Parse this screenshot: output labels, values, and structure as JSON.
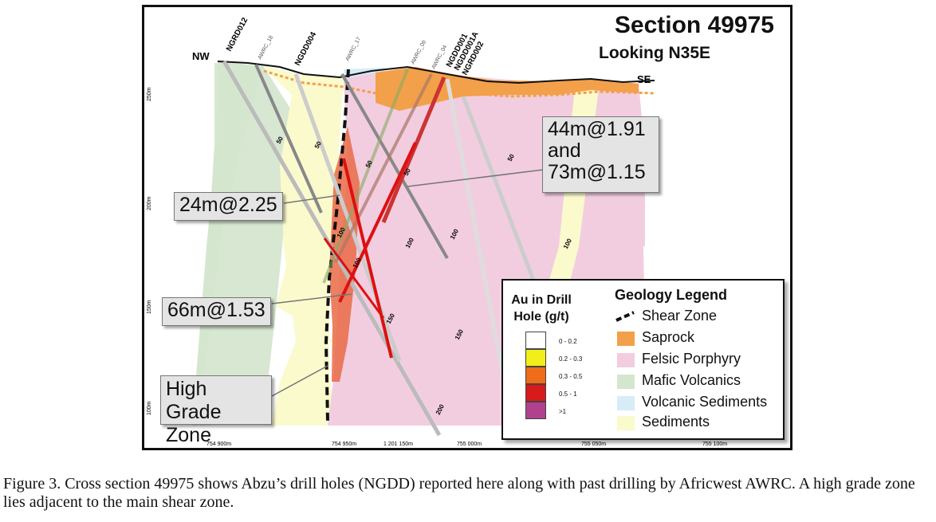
{
  "section": {
    "title": "Section 49975",
    "subtitle": "Looking N35E",
    "dir_left": "NW",
    "dir_right": "SE"
  },
  "holes": {
    "ngrd012": "NGRD012",
    "awrc18": "AWRC_18",
    "ngdd004": "NGDD004",
    "awrc17": "AWRC_17",
    "awrc09": "AWRC_09",
    "awrc04": "AWRC_04",
    "ngdd001": "NGDD001",
    "ngdd001a": "NGDD001A",
    "ngrd002": "NGRD002"
  },
  "depths": {
    "d50": "50",
    "d100": "100",
    "d150": "150",
    "d200": "200"
  },
  "rl_labels": [
    "250m",
    "200m",
    "150m",
    "100m"
  ],
  "easting_labels": [
    "754 900m",
    "754 950m",
    "1 201 150m",
    "755 000m",
    "755 050m",
    "755 100m"
  ],
  "callouts": {
    "c1": "44m@1.91\nand\n73m@1.15",
    "c2": "24m@2.25",
    "c3": "66m@1.53",
    "c4": "High Grade\nZone"
  },
  "legend": {
    "au_title": "Au in Drill\nHole (g/t)",
    "geo_title": "Geology Legend",
    "grades": [
      {
        "label": "0 - 0.2",
        "color": "#ffffff"
      },
      {
        "label": "0.2 - 0.3",
        "color": "#f2ee1c"
      },
      {
        "label": "0.3 - 0.5",
        "color": "#ef6c1a"
      },
      {
        "label": "0.5 - 1",
        "color": "#d81a1a"
      },
      {
        "label": ">1",
        "color": "#b0418f"
      }
    ],
    "geology": [
      {
        "label": "Shear Zone",
        "color": "#111111"
      },
      {
        "label": "Saprock",
        "color": "#f3a04a"
      },
      {
        "label": "Felsic Porphyry",
        "color": "#f2cde0"
      },
      {
        "label": "Mafic Volcanics",
        "color": "#d5e6cf"
      },
      {
        "label": "Volcanic Sediments",
        "color": "#d6ecf6"
      },
      {
        "label": "Sediments",
        "color": "#fafacd"
      }
    ]
  },
  "caption": "Figure 3.  Cross section 49975 shows Abzu’s drill holes (NGDD) reported here along with past drilling by Africwest AWRC. A high grade zone lies adjacent to the main shear zone."
}
